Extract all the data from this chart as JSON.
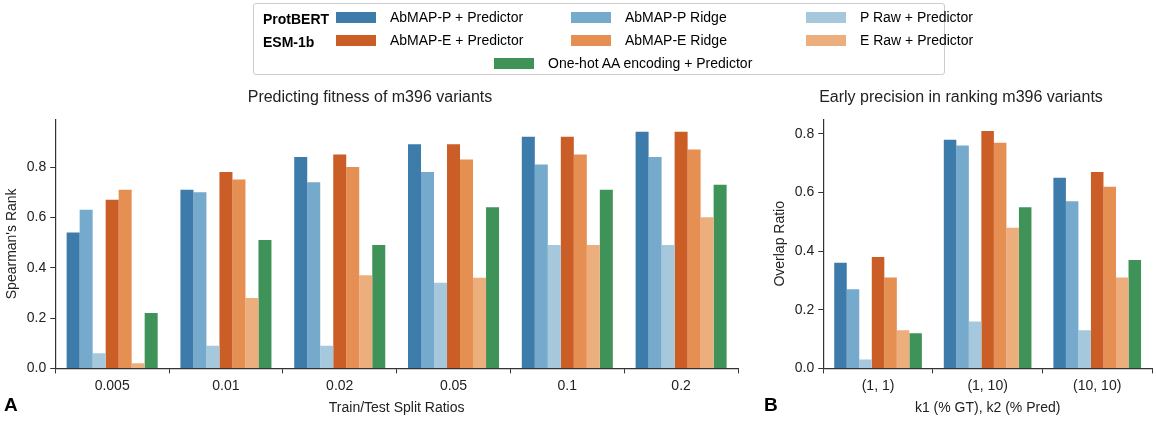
{
  "chart_data": [
    {
      "type": "bar",
      "title": "Predicting fitness of m396 variants",
      "xlabel": "Train/Test Split Ratios",
      "ylabel": "Spearman's Rank",
      "categories": [
        "0.005",
        "0.01",
        "0.02",
        "0.05",
        "0.1",
        "0.2"
      ],
      "series": [
        {
          "name": "AbMAP-P + Predictor",
          "color": "#3d7bab",
          "values": [
            0.54,
            0.71,
            0.84,
            0.89,
            0.92,
            0.94
          ]
        },
        {
          "name": "AbMAP-P Ridge",
          "color": "#76aacd",
          "values": [
            0.63,
            0.7,
            0.74,
            0.78,
            0.81,
            0.84
          ]
        },
        {
          "name": "P Raw + Predictor",
          "color": "#a6c8dd",
          "values": [
            0.06,
            0.09,
            0.09,
            0.34,
            0.49,
            0.49
          ]
        },
        {
          "name": "AbMAP-E + Predictor",
          "color": "#cb5d27",
          "values": [
            0.67,
            0.78,
            0.85,
            0.89,
            0.92,
            0.94
          ]
        },
        {
          "name": "AbMAP-E Ridge",
          "color": "#e58f53",
          "values": [
            0.71,
            0.75,
            0.8,
            0.83,
            0.85,
            0.87
          ]
        },
        {
          "name": "E Raw + Predictor",
          "color": "#ecae7d",
          "values": [
            0.02,
            0.28,
            0.37,
            0.36,
            0.49,
            0.6
          ]
        },
        {
          "name": "One-hot AA encoding + Predictor",
          "color": "#3f9359",
          "values": [
            0.22,
            0.51,
            0.49,
            0.64,
            0.71,
            0.73
          ]
        }
      ],
      "ylim": [
        0,
        0.99
      ],
      "yticks": [
        {
          "value": 0,
          "label": "0.0"
        },
        0.2,
        0.4,
        0.6,
        0.8
      ],
      "grid": false,
      "legend": "top",
      "annotations": [
        "ProtBERT",
        "ESM-1b",
        "A"
      ]
    },
    {
      "type": "bar",
      "title": "Early precision in ranking m396 variants",
      "xlabel": "k1 (% GT), k2 (% Pred)",
      "ylabel": "Overlap Ratio",
      "categories": [
        "(1, 1)",
        "(1, 10)",
        "(10, 10)"
      ],
      "series": [
        {
          "color": "#3d7bab",
          "values": [
            0.36,
            0.78,
            0.65
          ]
        },
        {
          "color": "#76aacd",
          "values": [
            0.27,
            0.76,
            0.57
          ]
        },
        {
          "color": "#a6c8dd",
          "values": [
            0.03,
            0.16,
            0.13
          ]
        },
        {
          "color": "#cb5d27",
          "values": [
            0.38,
            0.81,
            0.67
          ]
        },
        {
          "color": "#e58f53",
          "values": [
            0.31,
            0.77,
            0.62
          ]
        },
        {
          "color": "#ecae7d",
          "values": [
            0.13,
            0.48,
            0.31
          ]
        },
        {
          "color": "#3f9359",
          "values": [
            0.12,
            0.55,
            0.37
          ]
        }
      ],
      "ylim": [
        0,
        0.85
      ],
      "yticks": [
        {
          "value": 0,
          "label": "0.0"
        },
        0.2,
        0.4,
        0.6,
        0.8
      ],
      "grid": false,
      "annotations": [
        "B"
      ]
    }
  ]
}
